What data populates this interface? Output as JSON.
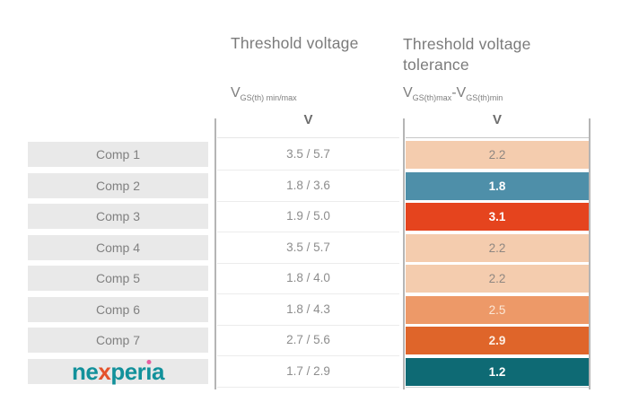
{
  "chart_data": {
    "type": "table",
    "title": "",
    "columns": [
      {
        "title": "Threshold voltage",
        "formula": "V_GS(th) min/max",
        "unit": "V"
      },
      {
        "title": "Threshold voltage tolerance",
        "formula": "V_GS(th)max - V_GS(th)min",
        "unit": "V"
      }
    ],
    "rows": [
      {
        "label": "Comp 1",
        "threshold_min": 3.5,
        "threshold_max": 5.7,
        "tolerance": 2.2
      },
      {
        "label": "Comp 2",
        "threshold_min": 1.8,
        "threshold_max": 3.6,
        "tolerance": 1.8
      },
      {
        "label": "Comp 3",
        "threshold_min": 1.9,
        "threshold_max": 5.0,
        "tolerance": 3.1
      },
      {
        "label": "Comp 4",
        "threshold_min": 3.5,
        "threshold_max": 5.7,
        "tolerance": 2.2
      },
      {
        "label": "Comp 5",
        "threshold_min": 1.8,
        "threshold_max": 4.0,
        "tolerance": 2.2
      },
      {
        "label": "Comp 6",
        "threshold_min": 1.8,
        "threshold_max": 4.3,
        "tolerance": 2.5
      },
      {
        "label": "Comp 7",
        "threshold_min": 2.7,
        "threshold_max": 5.6,
        "tolerance": 2.9
      },
      {
        "label": "nexperia",
        "threshold_min": 1.7,
        "threshold_max": 2.9,
        "tolerance": 1.2
      }
    ],
    "legend_note": "tolerance cells color-coded: teal/blue = low tolerance, peach to red = higher tolerance",
    "cell_colors": [
      "#f4ccae",
      "#4e8fa9",
      "#e5441e",
      "#f4ccae",
      "#f4ccae",
      "#ed9968",
      "#df652a",
      "#0e6a74"
    ]
  },
  "header": {
    "threshold": {
      "title": "Threshold voltage",
      "v": "V",
      "sub": "GS(th) min/max",
      "unit": "V"
    },
    "tolerance": {
      "title": "Threshold voltage tolerance",
      "v1": "V",
      "sub1": "GS(th)max",
      "minus": "-",
      "v2": "V",
      "sub2": "GS(th)min",
      "unit": "V"
    }
  },
  "rows": [
    {
      "label": "Comp 1",
      "threshold": "3.5 / 5.7",
      "tolerance": "2.2",
      "cell_style": "background:#f4ccae;color:#8f8781"
    },
    {
      "label": "Comp 2",
      "threshold": "1.8 / 3.6",
      "tolerance": "1.8",
      "cell_style": "background:#4e8fa9;color:#ffffff;font-weight:bold"
    },
    {
      "label": "Comp 3",
      "threshold": "1.9 / 5.0",
      "tolerance": "3.1",
      "cell_style": "background:#e5441e;color:#ffffff;font-weight:bold"
    },
    {
      "label": "Comp 4",
      "threshold": "3.5 / 5.7",
      "tolerance": "2.2",
      "cell_style": "background:#f4ccae;color:#8f8781"
    },
    {
      "label": "Comp 5",
      "threshold": "1.8 / 4.0",
      "tolerance": "2.2",
      "cell_style": "background:#f4ccae;color:#8f8781"
    },
    {
      "label": "Comp 6",
      "threshold": "1.8 / 4.3",
      "tolerance": "2.5",
      "cell_style": "background:#ed9968;color:#fbe7d6"
    },
    {
      "label": "Comp 7",
      "threshold": "2.7 / 5.6",
      "tolerance": "2.9",
      "cell_style": "background:#df652a;color:#fdeee3;font-weight:bold"
    },
    {
      "label": "nexperia",
      "threshold": "1.7 / 2.9",
      "tolerance": "1.2",
      "cell_style": "background:#0e6a74;color:#ffffff;font-weight:bold"
    }
  ],
  "logo": {
    "ne": "ne",
    "x": "x",
    "per": "per",
    "i": "ı",
    "a": "a",
    "teal": "#12919b",
    "orange": "#e4522b",
    "dot_pink": "#e75f9f"
  }
}
